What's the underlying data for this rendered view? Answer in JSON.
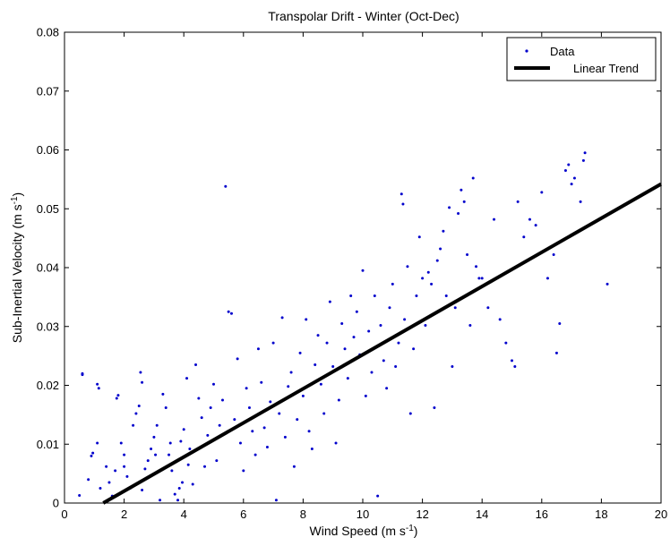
{
  "chart_data": {
    "type": "scatter",
    "title": "Transpolar Drift - Winter (Oct-Dec)",
    "xlabel": {
      "main": "Wind Speed (m s",
      "sup": "-1",
      "end": ")"
    },
    "ylabel": {
      "main": "Sub-Inertial Velocity (m s",
      "sup": "-1",
      "end": ")"
    },
    "xlim": [
      0,
      20
    ],
    "ylim": [
      0,
      0.08
    ],
    "xticks": [
      "0",
      "2",
      "4",
      "6",
      "8",
      "10",
      "12",
      "14",
      "16",
      "18",
      "20"
    ],
    "yticks": [
      "0",
      "0.01",
      "0.02",
      "0.03",
      "0.04",
      "0.05",
      "0.06",
      "0.07",
      "0.08"
    ],
    "grid": false,
    "legend_position": "top-right",
    "series": [
      {
        "name": "Data",
        "kind": "scatter",
        "color": "#0000cc",
        "points": [
          [
            0.5,
            0.0013
          ],
          [
            0.6,
            0.0218
          ],
          [
            0.6,
            0.022
          ],
          [
            0.8,
            0.004
          ],
          [
            0.9,
            0.008
          ],
          [
            0.95,
            0.0085
          ],
          [
            1.1,
            0.0202
          ],
          [
            1.15,
            0.0195
          ],
          [
            1.1,
            0.0102
          ],
          [
            1.2,
            0.0025
          ],
          [
            1.4,
            0.0062
          ],
          [
            1.5,
            0.0035
          ],
          [
            1.6,
            0.0012
          ],
          [
            1.7,
            0.0055
          ],
          [
            1.8,
            0.0183
          ],
          [
            1.75,
            0.0178
          ],
          [
            1.9,
            0.0102
          ],
          [
            2.0,
            0.0082
          ],
          [
            2.1,
            0.0045
          ],
          [
            2.2,
            0.0025
          ],
          [
            2.3,
            0.0132
          ],
          [
            2.4,
            0.0152
          ],
          [
            2.5,
            0.0165
          ],
          [
            2.55,
            0.0222
          ],
          [
            2.6,
            0.0205
          ],
          [
            2.7,
            0.0058
          ],
          [
            2.8,
            0.0072
          ],
          [
            2.9,
            0.0092
          ],
          [
            3.0,
            0.0112
          ],
          [
            3.1,
            0.0132
          ],
          [
            3.2,
            0.0005
          ],
          [
            3.3,
            0.0185
          ],
          [
            3.4,
            0.0162
          ],
          [
            3.5,
            0.0082
          ],
          [
            3.6,
            0.0055
          ],
          [
            3.7,
            0.0015
          ],
          [
            3.8,
            0.0005
          ],
          [
            3.85,
            0.0025
          ],
          [
            3.9,
            0.0105
          ],
          [
            4.0,
            0.0125
          ],
          [
            4.1,
            0.0212
          ],
          [
            4.2,
            0.0092
          ],
          [
            4.3,
            0.0032
          ],
          [
            4.4,
            0.0235
          ],
          [
            4.5,
            0.0178
          ],
          [
            4.6,
            0.0145
          ],
          [
            4.7,
            0.0062
          ],
          [
            4.8,
            0.0115
          ],
          [
            4.9,
            0.0162
          ],
          [
            5.0,
            0.0202
          ],
          [
            5.1,
            0.0072
          ],
          [
            5.2,
            0.0132
          ],
          [
            5.3,
            0.0175
          ],
          [
            5.4,
            0.0538
          ],
          [
            5.5,
            0.0325
          ],
          [
            5.6,
            0.0322
          ],
          [
            5.7,
            0.0142
          ],
          [
            5.8,
            0.0245
          ],
          [
            5.9,
            0.0102
          ],
          [
            6.0,
            0.0055
          ],
          [
            6.1,
            0.0195
          ],
          [
            6.2,
            0.0162
          ],
          [
            6.3,
            0.0122
          ],
          [
            6.4,
            0.0082
          ],
          [
            6.5,
            0.0262
          ],
          [
            6.6,
            0.0205
          ],
          [
            6.7,
            0.0128
          ],
          [
            6.8,
            0.0095
          ],
          [
            6.9,
            0.0172
          ],
          [
            7.0,
            0.0272
          ],
          [
            7.1,
            0.0005
          ],
          [
            7.2,
            0.0152
          ],
          [
            7.3,
            0.0315
          ],
          [
            7.4,
            0.0112
          ],
          [
            7.5,
            0.0198
          ],
          [
            7.6,
            0.0222
          ],
          [
            7.7,
            0.0062
          ],
          [
            7.8,
            0.0142
          ],
          [
            7.9,
            0.0255
          ],
          [
            8.0,
            0.0182
          ],
          [
            8.1,
            0.0312
          ],
          [
            8.2,
            0.0122
          ],
          [
            8.3,
            0.0092
          ],
          [
            8.4,
            0.0235
          ],
          [
            8.5,
            0.0285
          ],
          [
            8.6,
            0.0202
          ],
          [
            8.7,
            0.0152
          ],
          [
            8.8,
            0.0272
          ],
          [
            8.9,
            0.0342
          ],
          [
            9.0,
            0.0232
          ],
          [
            9.1,
            0.0102
          ],
          [
            9.2,
            0.0175
          ],
          [
            9.3,
            0.0305
          ],
          [
            9.4,
            0.0262
          ],
          [
            9.5,
            0.0212
          ],
          [
            9.6,
            0.0352
          ],
          [
            9.7,
            0.0282
          ],
          [
            9.8,
            0.0325
          ],
          [
            9.9,
            0.0252
          ],
          [
            10.0,
            0.0395
          ],
          [
            10.1,
            0.0182
          ],
          [
            10.2,
            0.0292
          ],
          [
            10.3,
            0.0222
          ],
          [
            10.4,
            0.0352
          ],
          [
            10.5,
            0.0012
          ],
          [
            10.6,
            0.0302
          ],
          [
            10.7,
            0.0242
          ],
          [
            10.8,
            0.0195
          ],
          [
            10.9,
            0.0332
          ],
          [
            11.0,
            0.0372
          ],
          [
            11.1,
            0.0232
          ],
          [
            11.2,
            0.0272
          ],
          [
            11.3,
            0.0525
          ],
          [
            11.35,
            0.0508
          ],
          [
            11.4,
            0.0312
          ],
          [
            11.5,
            0.0402
          ],
          [
            11.6,
            0.0152
          ],
          [
            11.7,
            0.0262
          ],
          [
            11.8,
            0.0352
          ],
          [
            11.9,
            0.0452
          ],
          [
            12.0,
            0.0382
          ],
          [
            12.1,
            0.0302
          ],
          [
            12.2,
            0.0392
          ],
          [
            12.3,
            0.0372
          ],
          [
            12.4,
            0.0162
          ],
          [
            12.5,
            0.0412
          ],
          [
            12.6,
            0.0432
          ],
          [
            12.7,
            0.0462
          ],
          [
            12.8,
            0.0352
          ],
          [
            12.9,
            0.0502
          ],
          [
            13.0,
            0.0232
          ],
          [
            13.1,
            0.0332
          ],
          [
            13.2,
            0.0492
          ],
          [
            13.3,
            0.0532
          ],
          [
            13.4,
            0.0512
          ],
          [
            13.5,
            0.0422
          ],
          [
            13.6,
            0.0302
          ],
          [
            13.7,
            0.0552
          ],
          [
            13.8,
            0.0402
          ],
          [
            13.9,
            0.0382
          ],
          [
            14.0,
            0.0382
          ],
          [
            14.2,
            0.0332
          ],
          [
            14.4,
            0.0482
          ],
          [
            14.6,
            0.0312
          ],
          [
            14.8,
            0.0272
          ],
          [
            15.0,
            0.0242
          ],
          [
            15.1,
            0.0232
          ],
          [
            15.2,
            0.0512
          ],
          [
            15.4,
            0.0452
          ],
          [
            15.6,
            0.0482
          ],
          [
            15.8,
            0.0472
          ],
          [
            16.0,
            0.0528
          ],
          [
            16.2,
            0.0382
          ],
          [
            16.4,
            0.0422
          ],
          [
            16.5,
            0.0255
          ],
          [
            16.6,
            0.0305
          ],
          [
            16.8,
            0.0565
          ],
          [
            16.9,
            0.0575
          ],
          [
            17.0,
            0.0542
          ],
          [
            17.1,
            0.0552
          ],
          [
            17.3,
            0.0512
          ],
          [
            17.4,
            0.0582
          ],
          [
            17.45,
            0.0595
          ],
          [
            18.2,
            0.0372
          ],
          [
            2.0,
            0.0062
          ],
          [
            2.6,
            0.0022
          ],
          [
            3.05,
            0.0082
          ],
          [
            3.55,
            0.0102
          ],
          [
            3.95,
            0.0035
          ],
          [
            4.15,
            0.0065
          ]
        ]
      },
      {
        "name": "Linear Trend",
        "kind": "line",
        "color": "#000000",
        "x": [
          1.3,
          20
        ],
        "y": [
          0.0,
          0.0542
        ]
      }
    ]
  }
}
